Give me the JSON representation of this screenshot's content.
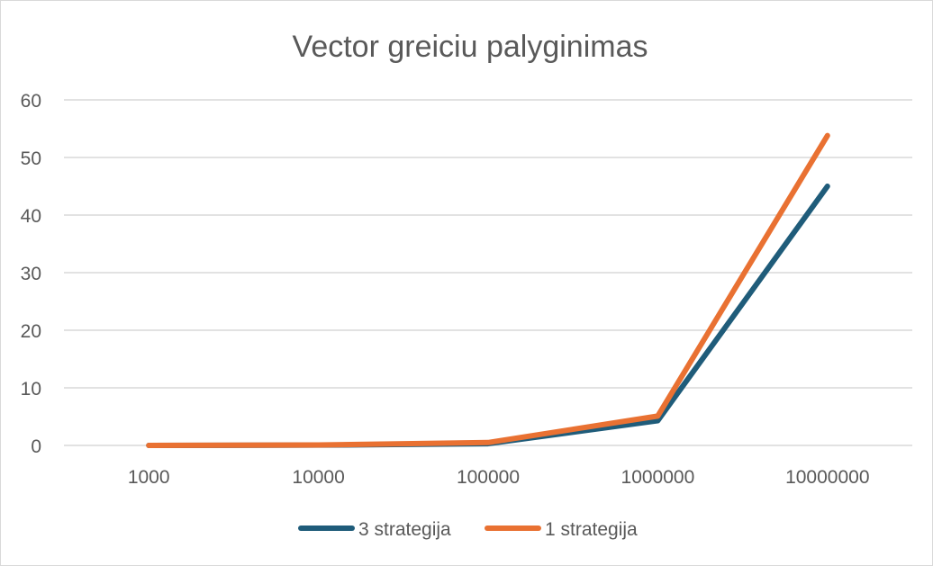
{
  "chart_data": {
    "type": "line",
    "title": "Vector greiciu palyginimas",
    "categories": [
      "1000",
      "10000",
      "100000",
      "1000000",
      "10000000"
    ],
    "ylim": [
      0,
      60
    ],
    "yticks": [
      "0",
      "10",
      "20",
      "30",
      "40",
      "50",
      "60"
    ],
    "grid": true,
    "legend_position": "bottom",
    "series": [
      {
        "name": "3 strategija",
        "color": "#1f5c7a",
        "values": [
          0.0,
          0.05,
          0.3,
          4.3,
          45.0
        ]
      },
      {
        "name": "1 strategija",
        "color": "#e97132",
        "values": [
          0.0,
          0.08,
          0.5,
          5.1,
          53.8
        ]
      }
    ]
  }
}
